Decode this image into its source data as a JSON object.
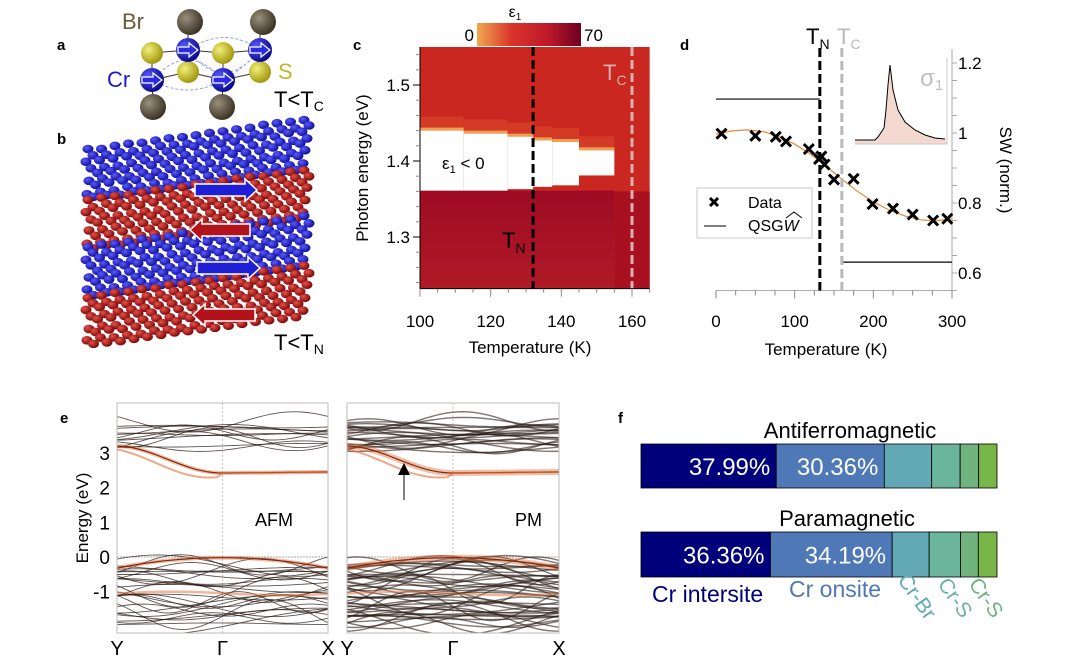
{
  "panel_labels": {
    "a": "a",
    "b": "b",
    "c": "c",
    "d": "d",
    "e": "e",
    "f": "f"
  },
  "colors": {
    "cr": "#1a1acc",
    "br": "#5e5443",
    "s": "#c9c22a",
    "spin_up": "#1f1fd6",
    "spin_down": "#b3121a",
    "qsgw_fit": "#e08a3c",
    "band_highlight": "#e0703c",
    "tc_line": "#b8b8b8"
  },
  "panel_a": {
    "br": "Br",
    "cr": "Cr",
    "s": "S",
    "cond_main": "T<T",
    "cond_sub": "C"
  },
  "panel_b": {
    "cond_main": "T<T",
    "cond_sub": "N"
  },
  "chart_data": [
    {
      "panel": "c",
      "type": "heatmap",
      "colorbar": {
        "label": "ε",
        "label_sub": "1",
        "min": 0,
        "max": 70,
        "min_label": "0",
        "max_label": "70",
        "colors": [
          "#f0a74f",
          "#d8342a",
          "#c01a2a",
          "#6e0021"
        ]
      },
      "xlabel": "Temperature (K)",
      "ylabel": "Photon energy (eV)",
      "xlim": [
        100,
        165
      ],
      "ylim": [
        1.232,
        1.55
      ],
      "xticks": [
        100,
        120,
        140,
        160
      ],
      "xtick_labels": [
        "100",
        "120",
        "140",
        "160"
      ],
      "yticks": [
        1.3,
        1.4,
        1.5
      ],
      "ytick_labels": [
        "1.3",
        "1.4",
        "1.5"
      ],
      "annotation": {
        "main": "ε",
        "sub": "1",
        "rest": " < 0"
      },
      "negative_region": [
        {
          "t_from": 100,
          "t_to": 112.4,
          "e_low": 1.361,
          "e_high": 1.44
        },
        {
          "t_from": 112.4,
          "t_to": 124.8,
          "e_low": 1.361,
          "e_high": 1.436
        },
        {
          "t_from": 124.8,
          "t_to": 132,
          "e_low": 1.363,
          "e_high": 1.432
        },
        {
          "t_from": 132,
          "t_to": 137.4,
          "e_low": 1.366,
          "e_high": 1.427
        },
        {
          "t_from": 137.4,
          "t_to": 145,
          "e_low": 1.368,
          "e_high": 1.425
        },
        {
          "t_from": 145,
          "t_to": 155,
          "e_low": 1.381,
          "e_high": 1.414
        }
      ],
      "above_color": "#c9271f",
      "below_color": "#9e0b24",
      "vlines": [
        {
          "x": 132,
          "label_main": "T",
          "label_sub": "N",
          "color": "#000000"
        },
        {
          "x": 160,
          "label_main": "T",
          "label_sub": "C",
          "color": "#d8b0b0"
        }
      ]
    },
    {
      "panel": "d",
      "type": "scatter",
      "xlabel": "Temperature (K)",
      "ylabel": "SW (norm.)",
      "xlim": [
        0,
        300
      ],
      "ylim": [
        0.55,
        1.24
      ],
      "xticks": [
        0,
        100,
        200,
        300
      ],
      "xtick_labels": [
        "0",
        "100",
        "200",
        "300"
      ],
      "yticks": [
        0.6,
        0.8,
        1.0,
        1.2
      ],
      "ytick_labels": [
        "0.6",
        "0.8",
        "1",
        "1.2"
      ],
      "series": [
        {
          "name": "Data",
          "marker": "x",
          "x": [
            7,
            50,
            76,
            89,
            118,
            131,
            134,
            138,
            150,
            175,
            199,
            225,
            250,
            276,
            294
          ],
          "y": [
            0.998,
            0.992,
            0.989,
            0.976,
            0.954,
            0.926,
            0.933,
            0.91,
            0.867,
            0.869,
            0.797,
            0.784,
            0.767,
            0.75,
            0.755
          ]
        },
        {
          "name": "QSG",
          "name_hat": "W",
          "segments": [
            {
              "x": [
                0,
                132
              ],
              "y": [
                1.097,
                1.097
              ]
            },
            {
              "x": [
                160,
                300
              ],
              "y": [
                0.631,
                0.631
              ]
            }
          ]
        }
      ],
      "fit": {
        "x": [
          0,
          20,
          40,
          60,
          80,
          100,
          120,
          140,
          160,
          180,
          200,
          220,
          240,
          260,
          280,
          300
        ],
        "y": [
          0.997,
          1.006,
          1.009,
          1.004,
          0.99,
          0.968,
          0.94,
          0.905,
          0.868,
          0.833,
          0.803,
          0.78,
          0.763,
          0.752,
          0.749,
          0.755
        ]
      },
      "vlines": [
        {
          "x": 132,
          "label_main": "T",
          "label_sub": "N",
          "color": "#000000"
        },
        {
          "x": 160,
          "label_main": "T",
          "label_sub": "C",
          "color": "#b8b8b8"
        }
      ],
      "inset": {
        "label_main": "σ",
        "label_sub": "1"
      },
      "legend": "left"
    },
    {
      "panel": "e",
      "type": "line",
      "ylabel": "Energy (eV)",
      "ylim": [
        -1.9,
        4.0
      ],
      "yticks": [
        -1,
        0,
        1,
        2,
        3
      ],
      "ytick_labels": [
        "-1",
        "0",
        "1",
        "2",
        "3"
      ],
      "kpath": [
        "Y",
        "Γ",
        "X"
      ],
      "subplots": [
        {
          "label": "AFM"
        },
        {
          "label": "PM"
        }
      ]
    },
    {
      "panel": "f",
      "type": "bar",
      "stacked": true,
      "categories": [
        "Cr intersite",
        "Cr onsite",
        "Cr-Br",
        "Cr-S",
        "Cr-S",
        ""
      ],
      "category_colors": [
        "#00007a",
        "#4f79b6",
        "#62a9b5",
        "#6bb59c",
        "#70b37f",
        "#78b747"
      ],
      "series": [
        {
          "name": "Antiferromagnetic",
          "values": [
            37.99,
            30.36,
            13.3,
            8.0,
            5.2,
            5.15
          ],
          "labels": [
            "37.99%",
            "30.36%"
          ]
        },
        {
          "name": "Paramagnetic",
          "values": [
            36.36,
            34.19,
            10.4,
            8.8,
            5.0,
            5.25
          ],
          "labels": [
            "36.36%",
            "34.19%"
          ]
        }
      ]
    }
  ]
}
